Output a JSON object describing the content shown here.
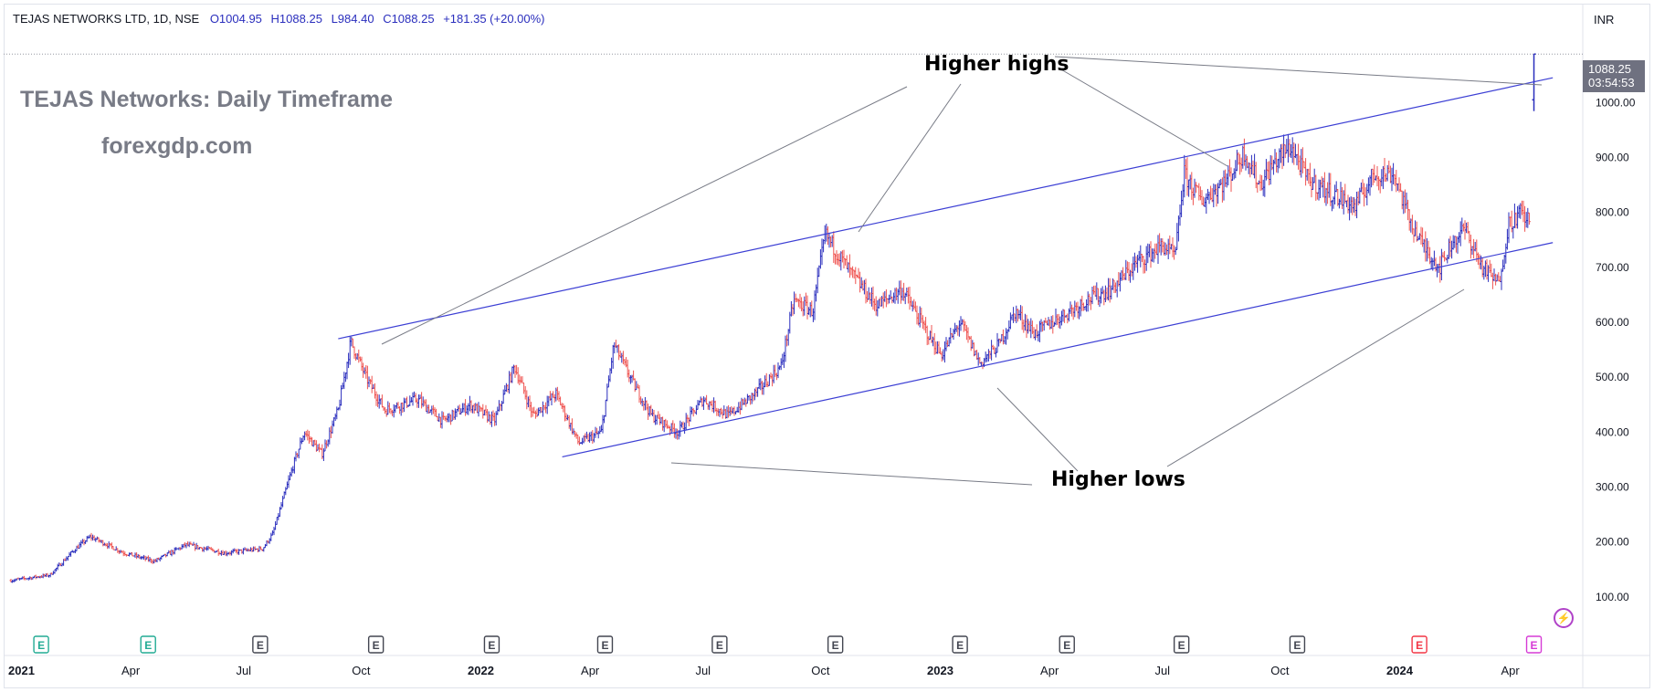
{
  "header": {
    "symbol": "TEJAS NETWORKS LTD, 1D, NSE",
    "open": "O1004.95",
    "high": "H1088.25",
    "low": "L984.40",
    "close": "C1088.25",
    "change": "+181.35 (+20.00%)",
    "currency": "INR"
  },
  "overlay": {
    "title": "TEJAS Networks: Daily Timeframe",
    "site": "forexgdp.com"
  },
  "annotations": {
    "highs_label": "Higher highs",
    "lows_label": "Higher lows"
  },
  "last_price": {
    "value": "1088.25",
    "countdown": "03:54:53"
  },
  "events_icon": "lightning-icon",
  "colors": {
    "up_bar": "#2a2ebd",
    "down_bar": "#ef5350",
    "trendline": "#3c3fd4",
    "callout": "#787b86",
    "earnings_past": "#22ab94",
    "earnings_neutral": "#434651",
    "earnings_recent": "#f23645",
    "earnings_upcoming": "#d63bd6"
  },
  "chart_data": {
    "type": "line",
    "title": "TEJAS NETWORKS LTD, 1D, NSE",
    "xlabel": "",
    "ylabel": "",
    "ylim": [
      40,
      1170
    ],
    "grid": false,
    "y_ticks": [
      100,
      200,
      300,
      400,
      500,
      600,
      700,
      800,
      900,
      1000
    ],
    "x_ticks": [
      {
        "label": "2021",
        "date": "2021-01-01"
      },
      {
        "label": "Apr",
        "date": "2021-04-01"
      },
      {
        "label": "Jul",
        "date": "2021-07-01"
      },
      {
        "label": "Oct",
        "date": "2021-10-01"
      },
      {
        "label": "2022",
        "date": "2022-01-01"
      },
      {
        "label": "Apr",
        "date": "2022-04-01"
      },
      {
        "label": "Jul",
        "date": "2022-07-01"
      },
      {
        "label": "Oct",
        "date": "2022-10-01"
      },
      {
        "label": "2023",
        "date": "2023-01-01"
      },
      {
        "label": "Apr",
        "date": "2023-04-01"
      },
      {
        "label": "Jul",
        "date": "2023-07-01"
      },
      {
        "label": "Oct",
        "date": "2023-10-01"
      },
      {
        "label": "2024",
        "date": "2024-01-01"
      },
      {
        "label": "Apr",
        "date": "2024-04-01"
      }
    ],
    "series": [
      {
        "values_key": "price_path",
        "points": [
          [
            "2021-01-01",
            130
          ],
          [
            "2021-02-01",
            140
          ],
          [
            "2021-02-20",
            185
          ],
          [
            "2021-03-05",
            210
          ],
          [
            "2021-04-01",
            180
          ],
          [
            "2021-04-25",
            165
          ],
          [
            "2021-05-20",
            195
          ],
          [
            "2021-06-20",
            180
          ],
          [
            "2021-07-20",
            188
          ],
          [
            "2021-07-28",
            215
          ],
          [
            "2021-08-12",
            330
          ],
          [
            "2021-08-22",
            400
          ],
          [
            "2021-09-05",
            360
          ],
          [
            "2021-09-18",
            440
          ],
          [
            "2021-09-28",
            565
          ],
          [
            "2021-10-10",
            500
          ],
          [
            "2021-10-25",
            440
          ],
          [
            "2021-11-20",
            460
          ],
          [
            "2021-12-10",
            420
          ],
          [
            "2022-01-01",
            450
          ],
          [
            "2022-01-20",
            420
          ],
          [
            "2022-02-05",
            520
          ],
          [
            "2022-02-20",
            430
          ],
          [
            "2022-03-10",
            470
          ],
          [
            "2022-03-28",
            380
          ],
          [
            "2022-04-15",
            400
          ],
          [
            "2022-04-25",
            560
          ],
          [
            "2022-05-10",
            490
          ],
          [
            "2022-05-25",
            430
          ],
          [
            "2022-06-15",
            400
          ],
          [
            "2022-07-05",
            460
          ],
          [
            "2022-07-25",
            430
          ],
          [
            "2022-08-15",
            470
          ],
          [
            "2022-09-05",
            520
          ],
          [
            "2022-09-15",
            640
          ],
          [
            "2022-09-30",
            620
          ],
          [
            "2022-10-10",
            760
          ],
          [
            "2022-10-30",
            690
          ],
          [
            "2022-11-20",
            630
          ],
          [
            "2022-12-10",
            660
          ],
          [
            "2022-12-25",
            600
          ],
          [
            "2023-01-10",
            540
          ],
          [
            "2023-01-25",
            600
          ],
          [
            "2023-02-10",
            525
          ],
          [
            "2023-02-25",
            560
          ],
          [
            "2023-03-10",
            620
          ],
          [
            "2023-03-25",
            580
          ],
          [
            "2023-04-15",
            610
          ],
          [
            "2023-05-05",
            640
          ],
          [
            "2023-05-25",
            660
          ],
          [
            "2023-06-15",
            710
          ],
          [
            "2023-07-05",
            740
          ],
          [
            "2023-07-15",
            720
          ],
          [
            "2023-07-22",
            870
          ],
          [
            "2023-08-05",
            820
          ],
          [
            "2023-08-25",
            860
          ],
          [
            "2023-09-08",
            910
          ],
          [
            "2023-09-20",
            850
          ],
          [
            "2023-10-05",
            900
          ],
          [
            "2023-10-15",
            920
          ],
          [
            "2023-10-28",
            860
          ],
          [
            "2023-11-20",
            830
          ],
          [
            "2023-12-05",
            810
          ],
          [
            "2023-12-20",
            870
          ],
          [
            "2024-01-05",
            870
          ],
          [
            "2024-01-15",
            800
          ],
          [
            "2024-01-25",
            750
          ],
          [
            "2024-02-10",
            700
          ],
          [
            "2024-02-20",
            745
          ],
          [
            "2024-03-01",
            770
          ],
          [
            "2024-03-15",
            700
          ],
          [
            "2024-03-28",
            670
          ],
          [
            "2024-04-05",
            780
          ],
          [
            "2024-04-15",
            800
          ],
          [
            "2024-04-22",
            780
          ],
          [
            "2024-04-25",
            1088.25
          ]
        ]
      }
    ],
    "last_bar": {
      "date": "2024-04-25",
      "open": 1004.95,
      "high": 1088.25,
      "low": 984.4,
      "close": 1088.25
    },
    "trendlines": [
      {
        "name": "upper",
        "from": [
          "2021-09-18",
          570
        ],
        "to": [
          "2024-05-10",
          1045
        ]
      },
      {
        "name": "lower",
        "from": [
          "2022-03-15",
          355
        ],
        "to": [
          "2024-05-10",
          745
        ]
      }
    ],
    "earnings_markers": [
      {
        "date": "2021-01-25",
        "status": "past_green"
      },
      {
        "date": "2021-04-20",
        "status": "past_green"
      },
      {
        "date": "2021-07-18",
        "status": "neutral"
      },
      {
        "date": "2021-10-18",
        "status": "neutral"
      },
      {
        "date": "2022-01-18",
        "status": "neutral"
      },
      {
        "date": "2022-04-18",
        "status": "neutral"
      },
      {
        "date": "2022-07-18",
        "status": "neutral"
      },
      {
        "date": "2022-10-18",
        "status": "neutral"
      },
      {
        "date": "2023-01-25",
        "status": "neutral"
      },
      {
        "date": "2023-04-20",
        "status": "neutral"
      },
      {
        "date": "2023-07-20",
        "status": "neutral"
      },
      {
        "date": "2023-10-20",
        "status": "neutral"
      },
      {
        "date": "2024-01-25",
        "status": "recent_red"
      },
      {
        "date": "2024-04-25",
        "status": "upcoming"
      }
    ],
    "earnings_label": "E"
  }
}
